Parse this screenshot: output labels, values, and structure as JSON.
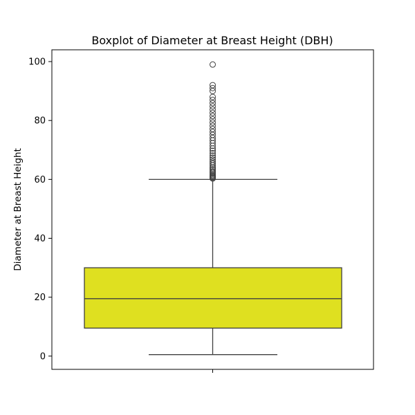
{
  "chart_data": {
    "type": "boxplot",
    "title": "Boxplot of Diameter at Breast Height (DBH)",
    "xlabel": "",
    "ylabel": "Diameter at Breast Height",
    "ylim": [
      -4.5,
      104
    ],
    "yticks": [
      0,
      20,
      40,
      60,
      80,
      100
    ],
    "grid": false,
    "box": {
      "whisker_low": 0.5,
      "q1": 9.5,
      "median": 19.5,
      "q3": 30.0,
      "whisker_high": 60.0,
      "outliers": [
        60.3,
        60.6,
        60.9,
        61.2,
        61.5,
        61.9,
        62.3,
        62.7,
        63.2,
        63.7,
        64.2,
        64.8,
        65.4,
        66.0,
        66.7,
        67.4,
        68.1,
        68.9,
        69.7,
        70.5,
        71.4,
        72.3,
        73.2,
        74.1,
        75.1,
        76.1,
        77.1,
        78.2,
        79.3,
        80.4,
        81.5,
        82.6,
        83.7,
        84.8,
        85.9,
        87.0,
        88.0,
        90.0,
        91.0,
        92.0,
        99.0
      ]
    },
    "colors": {
      "box_fill": "#dfe020",
      "line": "#3f3f3f"
    }
  }
}
